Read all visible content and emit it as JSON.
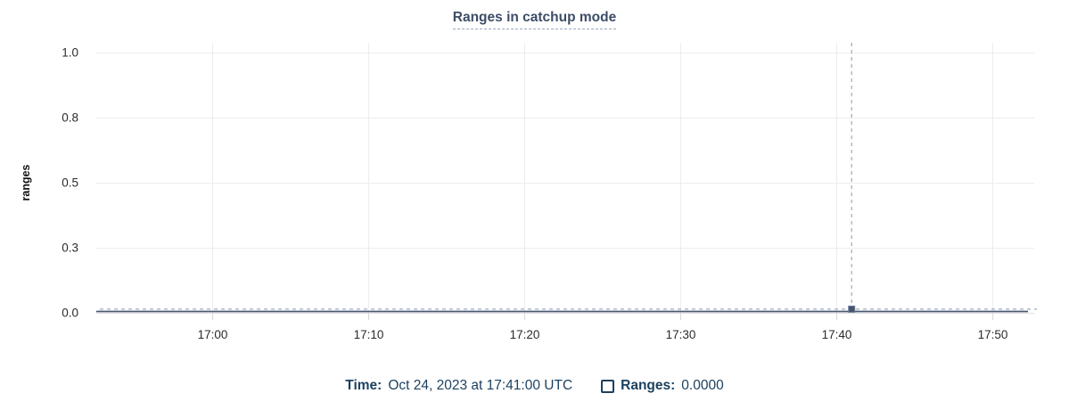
{
  "chart_data": {
    "type": "line",
    "title": "Ranges in catchup mode",
    "ylabel": "ranges",
    "xlabel": "",
    "ylim": [
      0,
      1
    ],
    "grid": true,
    "legend_position": "bottom",
    "y_ticks": [
      {
        "value": 0.0,
        "label": "0.0"
      },
      {
        "value": 0.25,
        "label": "0.3"
      },
      {
        "value": 0.5,
        "label": "0.5"
      },
      {
        "value": 0.75,
        "label": "0.8"
      },
      {
        "value": 1.0,
        "label": "1.0"
      }
    ],
    "x_axis": {
      "unit": "minutes after 17:00",
      "range": [
        -7.4,
        52.7
      ],
      "ticks": [
        {
          "x": 0,
          "label": "17:00"
        },
        {
          "x": 10,
          "label": "17:10"
        },
        {
          "x": 20,
          "label": "17:20"
        },
        {
          "x": 30,
          "label": "17:30"
        },
        {
          "x": 40,
          "label": "17:40"
        },
        {
          "x": 50,
          "label": "17:50"
        }
      ]
    },
    "series": [
      {
        "name": "Ranges",
        "color": "#475872",
        "constant_value": 0,
        "x_start": -7.4,
        "x_end": 52.3
      }
    ],
    "cursor": {
      "x": 41,
      "hovered_value": 0,
      "crosshair_y_value": 0.014
    }
  },
  "legend": {
    "time_label": "Time:",
    "time_value": "Oct 24, 2023 at 17:41:00 UTC",
    "series_label": "Ranges:",
    "series_value": "0.0000",
    "checkbox_checked": false
  },
  "colors": {
    "series": "#475872",
    "marker_fill": "#44536b",
    "marker_edge": "#6d7f99",
    "grid": "#ededed",
    "baseline": "#e2e2e2",
    "tick_mark": "#d8d8d8",
    "crosshair": "#9bacbd",
    "title": "#3e4d66",
    "legend_text": "#1c4160",
    "axis_text": "#2b2b2b",
    "y_axis_label": "#111111"
  }
}
